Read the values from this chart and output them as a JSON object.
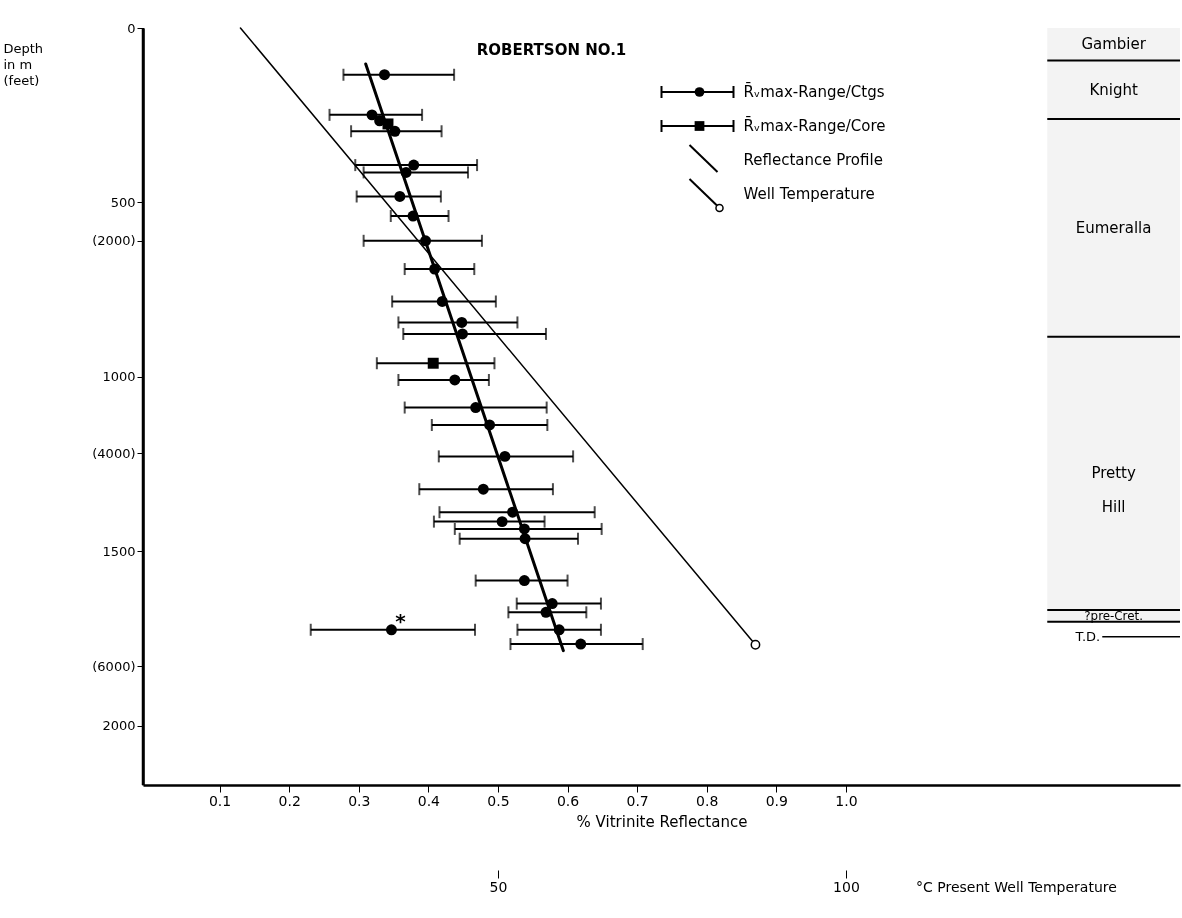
{
  "chart_data": {
    "type": "scatter",
    "title": "ROBERTSON NO.1",
    "xlabel": "% Vitrinite Reflectance",
    "y2label": "Depth in m (feet)",
    "x2label": "°C Present Well Temperature",
    "xlim": [
      -0.01,
      1.48
    ],
    "xticks": [
      0.1,
      0.2,
      0.3,
      0.4,
      0.5,
      0.6,
      0.7,
      0.8,
      0.9,
      {
        "value": 1.0,
        "label": "1.0"
      }
    ],
    "x2lim": [
      -1,
      148
    ],
    "x2ticks": [
      50,
      100
    ],
    "ylim": [
      2170,
      0
    ],
    "yticks": [
      0,
      500,
      1000,
      1500,
      2000
    ],
    "y2lim": [
      7119,
      0
    ],
    "y2ticks": [
      {
        "value": 2000,
        "label": "(2000)"
      },
      {
        "value": 4000,
        "label": "(4000)"
      },
      {
        "value": 6000,
        "label": "(6000)"
      }
    ],
    "legend": "top",
    "series": [
      {
        "name": "R̄ᵥmax-Range/Ctgs",
        "marker": "circle",
        "color": "#000000",
        "x": [
          0.337,
          0.319,
          0.33,
          0.352,
          0.379,
          0.368,
          0.359,
          0.378,
          0.396,
          0.409,
          0.42,
          0.448,
          0.449,
          0.438,
          0.468,
          0.488,
          0.51,
          0.479,
          0.521,
          0.506,
          0.538,
          0.539,
          0.538,
          0.578,
          0.569,
          0.347,
          0.588,
          0.619
        ],
        "values": [
          134,
          249,
          266,
          296,
          393,
          414,
          483,
          539,
          610,
          691,
          784,
          844,
          877,
          1009,
          1088,
          1138,
          1228,
          1322,
          1388,
          1415,
          1436,
          1464,
          1584,
          1650,
          1675,
          1725,
          1725,
          1766
        ],
        "xerrors": [
          [
            0.278,
            0.437
          ],
          [
            0.258,
            0.391
          ],
          null,
          [
            0.289,
            0.419
          ],
          [
            0.295,
            0.47
          ],
          [
            0.307,
            0.457
          ],
          [
            0.297,
            0.418
          ],
          [
            0.346,
            0.429
          ],
          [
            0.307,
            0.477
          ],
          [
            0.366,
            0.466
          ],
          [
            0.348,
            0.497
          ],
          [
            0.357,
            0.528
          ],
          [
            0.364,
            0.569
          ],
          [
            0.357,
            0.487
          ],
          [
            0.366,
            0.57
          ],
          [
            0.405,
            0.571
          ],
          [
            0.415,
            0.608
          ],
          [
            0.387,
            0.579
          ],
          [
            0.416,
            0.639
          ],
          [
            0.408,
            0.567
          ],
          [
            0.438,
            0.649
          ],
          [
            0.445,
            0.615
          ],
          [
            0.468,
            0.6
          ],
          [
            0.527,
            0.648
          ],
          [
            0.515,
            0.627
          ],
          [
            0.231,
            0.467
          ],
          [
            0.528,
            0.648
          ],
          [
            0.518,
            0.708
          ]
        ]
      },
      {
        "name": "R̄ᵥmax-Range/Core",
        "type": "scatter",
        "marker": "square",
        "color": "#000000",
        "x": [
          0.342,
          0.407
        ],
        "values": [
          275,
          961
        ],
        "xerrors": [
          null,
          [
            0.326,
            0.495
          ]
        ]
      },
      {
        "name": "Reflectance Profile",
        "type": "line",
        "marker": "none",
        "color": "#000000",
        "x": [
          0.31,
          0.594
        ],
        "values": [
          103,
          1785
        ]
      },
      {
        "name": "Well Temperature",
        "type": "line",
        "axis": "x2",
        "marker": "circle",
        "color": "#000000",
        "x": [
          13,
          87
        ],
        "values": [
          0,
          1768
        ]
      }
    ],
    "annotations": [
      {
        "text": "*",
        "x": 0.347,
        "y": 1725
      }
    ],
    "bands": [
      {
        "axis": "y",
        "from": 0,
        "to": 93,
        "label": "Gambier",
        "color": "#f3f3f3"
      },
      {
        "axis": "y",
        "from": 93,
        "to": 261,
        "label": "Knight",
        "color": "#f3f3f3"
      },
      {
        "axis": "y",
        "from": 261,
        "to": 885,
        "label": "Eumeralla",
        "color": "#f3f3f3"
      },
      {
        "axis": "y",
        "from": 885,
        "to": 1668,
        "label": "Pretty Hill",
        "color": "#f3f3f3"
      },
      {
        "axis": "y",
        "from": 1668,
        "to": 1702,
        "label": "?pre-Cret.",
        "color": "#f3f3f3"
      }
    ],
    "ref_lines": [
      {
        "axis": "y",
        "value": 93
      },
      {
        "axis": "y",
        "value": 261
      },
      {
        "axis": "y",
        "value": 885
      },
      {
        "axis": "y",
        "value": 1668
      },
      {
        "axis": "y",
        "value": 1702
      },
      {
        "axis": "y",
        "value": 1745,
        "label": "T.D."
      }
    ]
  }
}
